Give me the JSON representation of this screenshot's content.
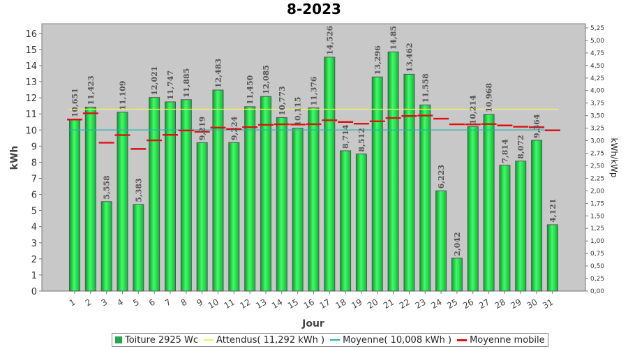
{
  "chart_data": {
    "type": "bar",
    "title": "8-2023",
    "xlabel": "Jour",
    "ylabel": "kWh",
    "ylabel_right": "kWh/kWp",
    "ylim": [
      0,
      16.6
    ],
    "ylim_right": [
      0,
      5.3333
    ],
    "y_ticks": [
      "0",
      "1",
      "2",
      "3",
      "4",
      "5",
      "6",
      "7",
      "8",
      "9",
      "10",
      "11",
      "12",
      "13",
      "14",
      "15",
      "16"
    ],
    "y_ticks_right": [
      "0,00",
      "0,25",
      "0,50",
      "0,75",
      "1,00",
      "1,25",
      "1,50",
      "1,75",
      "2,00",
      "2,25",
      "2,50",
      "2,75",
      "3,00",
      "3,25",
      "3,50",
      "3,75",
      "4,00",
      "4,25",
      "4,50",
      "4,75",
      "5,00",
      "5,25"
    ],
    "categories": [
      "1",
      "2",
      "3",
      "4",
      "5",
      "6",
      "7",
      "8",
      "9",
      "10",
      "11",
      "12",
      "13",
      "14",
      "15",
      "16",
      "17",
      "18",
      "19",
      "20",
      "21",
      "22",
      "23",
      "24",
      "25",
      "26",
      "27",
      "28",
      "29",
      "30",
      "31"
    ],
    "series": [
      {
        "name": "Toiture 2925 Wc",
        "kind": "bar",
        "color": "#22e04a",
        "values": [
          10.651,
          11.423,
          5.558,
          11.109,
          5.383,
          12.021,
          11.747,
          11.885,
          9.219,
          12.483,
          9.224,
          11.45,
          12.085,
          10.773,
          10.115,
          11.376,
          14.526,
          8.714,
          8.512,
          13.296,
          14.85,
          13.462,
          11.558,
          6.223,
          2.042,
          10.214,
          10.968,
          7.814,
          8.072,
          9.364,
          4.121
        ],
        "labels": [
          "10,651",
          "11,423",
          "5,558",
          "11,109",
          "5,383",
          "12,021",
          "11,747",
          "11,885",
          "9,219",
          "12,483",
          "9,224",
          "11,450",
          "12,085",
          "10,773",
          "10,115",
          "11,376",
          "14,526",
          "8,714",
          "8,512",
          "13,296",
          "14,85",
          "13,462",
          "11,558",
          "6,223",
          "2,042",
          "10,214",
          "10,968",
          "7,814",
          "8,072",
          "9,364",
          "4,121"
        ]
      },
      {
        "name": "Attendus( 11,292 kWh )",
        "kind": "hline",
        "color": "#f2f25a",
        "value": 11.292
      },
      {
        "name": "Moyenne( 10,008 kWh )",
        "kind": "hline",
        "color": "#2ab0b0",
        "value": 10.008
      },
      {
        "name": "Moyenne mobile",
        "kind": "step",
        "color": "#dd1111",
        "values": [
          10.651,
          11.037,
          9.211,
          9.685,
          8.825,
          9.358,
          9.699,
          9.972,
          9.888,
          10.147,
          10.063,
          10.178,
          10.325,
          10.357,
          10.341,
          10.36,
          10.605,
          10.5,
          10.395,
          10.54,
          10.745,
          10.868,
          10.898,
          10.703,
          10.357,
          10.351,
          10.374,
          10.283,
          10.206,
          10.175,
          9.979
        ]
      }
    ],
    "grid": false,
    "legend_position": "bottom"
  }
}
